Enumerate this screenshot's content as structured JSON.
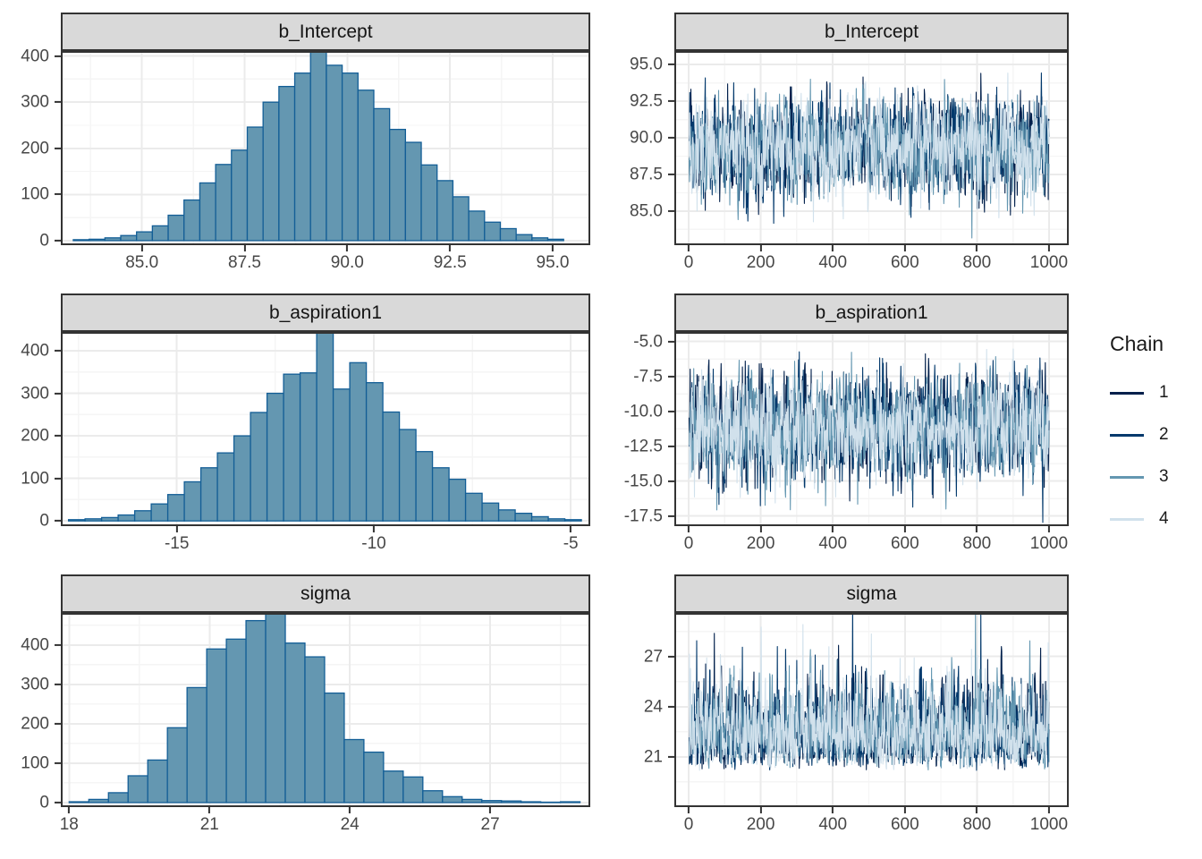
{
  "legend": {
    "title": "Chain",
    "items": [
      {
        "label": "1",
        "color": "#011f4b"
      },
      {
        "label": "2",
        "color": "#03396c"
      },
      {
        "label": "3",
        "color": "#6497b1"
      },
      {
        "label": "4",
        "color": "#d1e1ec"
      }
    ]
  },
  "style": {
    "bar_fill": "#6497b1",
    "bar_stroke": "#135e96",
    "strip_background": "#d9d9d9",
    "panel_border": "#333333",
    "grid_major": "#ebebeb",
    "grid_minor": "#f5f5f5",
    "tick_color": "#333333",
    "tick_label_color": "#474747"
  },
  "chart_data": [
    {
      "type": "bar",
      "subtype": "histogram",
      "title": "b_Intercept",
      "xlim": [
        83.07,
        95.87
      ],
      "ylim": [
        -6,
        407
      ],
      "x_ticks": [
        85.0,
        87.5,
        90.0,
        92.5,
        95.0
      ],
      "x_tick_labels": [
        "85.0",
        "87.5",
        "90.0",
        "92.5",
        "95.0"
      ],
      "y_ticks": [
        0,
        100,
        200,
        300,
        400
      ],
      "y_tick_labels": [
        "0",
        "100",
        "200",
        "300",
        "400"
      ],
      "bin_start": 83.33,
      "bin_width": 0.385,
      "counts": [
        2,
        3,
        6,
        11,
        19,
        32,
        55,
        88,
        125,
        165,
        196,
        246,
        300,
        334,
        363,
        415,
        380,
        363,
        326,
        286,
        241,
        213,
        164,
        130,
        95,
        64,
        40,
        26,
        13,
        6,
        3
      ]
    },
    {
      "type": "line",
      "subtype": "trace",
      "title": "b_Intercept",
      "xlim": [
        -35,
        1050
      ],
      "ylim": [
        82.8,
        95.8
      ],
      "x_ticks": [
        0,
        200,
        400,
        600,
        800,
        1000
      ],
      "x_tick_labels": [
        "0",
        "200",
        "400",
        "600",
        "800",
        "1000"
      ],
      "y_ticks": [
        85.0,
        87.5,
        90.0,
        92.5,
        95.0
      ],
      "y_tick_labels": [
        "85.0",
        "87.5",
        "90.0",
        "92.5",
        "95.0"
      ],
      "n_iterations": 1000,
      "skew": 0,
      "chains": [
        {
          "label": "1",
          "color": "#011f4b",
          "mean": 89.35,
          "sd": 1.62
        },
        {
          "label": "2",
          "color": "#03396c",
          "mean": 89.35,
          "sd": 1.62
        },
        {
          "label": "3",
          "color": "#6497b1",
          "mean": 89.35,
          "sd": 1.62
        },
        {
          "label": "4",
          "color": "#d1e1ec",
          "mean": 89.35,
          "sd": 1.62
        }
      ]
    },
    {
      "type": "bar",
      "subtype": "histogram",
      "title": "b_aspiration1",
      "xlim": [
        -17.9,
        -4.55
      ],
      "ylim": [
        -8,
        440
      ],
      "x_ticks": [
        -15,
        -10,
        -5
      ],
      "x_tick_labels": [
        "-15",
        "-10",
        "-5"
      ],
      "y_ticks": [
        0,
        100,
        200,
        300,
        400
      ],
      "y_tick_labels": [
        "0",
        "100",
        "200",
        "300",
        "400"
      ],
      "bin_start": -17.75,
      "bin_width": 0.42,
      "counts": [
        3,
        5,
        8,
        14,
        24,
        40,
        62,
        92,
        125,
        160,
        200,
        255,
        300,
        345,
        348,
        445,
        310,
        372,
        325,
        256,
        215,
        163,
        125,
        98,
        65,
        42,
        26,
        18,
        10,
        5,
        3
      ]
    },
    {
      "type": "line",
      "subtype": "trace",
      "title": "b_aspiration1",
      "xlim": [
        -35,
        1050
      ],
      "ylim": [
        -18.1,
        -4.45
      ],
      "x_ticks": [
        0,
        200,
        400,
        600,
        800,
        1000
      ],
      "x_tick_labels": [
        "0",
        "200",
        "400",
        "600",
        "800",
        "1000"
      ],
      "y_ticks": [
        -5.0,
        -7.5,
        -10.0,
        -12.5,
        -15.0,
        -17.5
      ],
      "y_tick_labels": [
        "-5.0",
        "-7.5",
        "-10.0",
        "-12.5",
        "-15.0",
        "-17.5"
      ],
      "n_iterations": 1000,
      "skew": 0,
      "chains": [
        {
          "label": "1",
          "color": "#011f4b",
          "mean": -11.15,
          "sd": 1.85
        },
        {
          "label": "2",
          "color": "#03396c",
          "mean": -11.15,
          "sd": 1.85
        },
        {
          "label": "3",
          "color": "#6497b1",
          "mean": -11.15,
          "sd": 1.85
        },
        {
          "label": "4",
          "color": "#d1e1ec",
          "mean": -11.15,
          "sd": 1.85
        }
      ]
    },
    {
      "type": "bar",
      "subtype": "histogram",
      "title": "sigma",
      "xlim": [
        17.86,
        29.1
      ],
      "ylim": [
        -7,
        477
      ],
      "x_ticks": [
        18,
        21,
        24,
        27
      ],
      "x_tick_labels": [
        "18",
        "21",
        "24",
        "27"
      ],
      "y_ticks": [
        0,
        100,
        200,
        300,
        400
      ],
      "y_tick_labels": [
        "0",
        "100",
        "200",
        "300",
        "400"
      ],
      "bin_start": 18.0,
      "bin_width": 0.42,
      "counts": [
        2,
        8,
        25,
        68,
        108,
        190,
        292,
        390,
        415,
        462,
        480,
        405,
        370,
        278,
        160,
        128,
        80,
        65,
        30,
        15,
        8,
        5,
        4,
        2,
        1,
        2
      ]
    },
    {
      "type": "line",
      "subtype": "trace",
      "title": "sigma",
      "xlim": [
        -35,
        1050
      ],
      "ylim": [
        18.1,
        29.5
      ],
      "x_ticks": [
        0,
        200,
        400,
        600,
        800,
        1000
      ],
      "x_tick_labels": [
        "0",
        "200",
        "400",
        "600",
        "800",
        "1000"
      ],
      "y_ticks": [
        21,
        24,
        27
      ],
      "y_tick_labels": [
        "21",
        "24",
        "27"
      ],
      "n_iterations": 1000,
      "skew": 0.15,
      "chains": [
        {
          "label": "1",
          "color": "#011f4b",
          "mean": 22.55,
          "sd": 1.3
        },
        {
          "label": "2",
          "color": "#03396c",
          "mean": 22.55,
          "sd": 1.3
        },
        {
          "label": "3",
          "color": "#6497b1",
          "mean": 22.55,
          "sd": 1.3
        },
        {
          "label": "4",
          "color": "#d1e1ec",
          "mean": 22.55,
          "sd": 1.3
        }
      ]
    }
  ]
}
